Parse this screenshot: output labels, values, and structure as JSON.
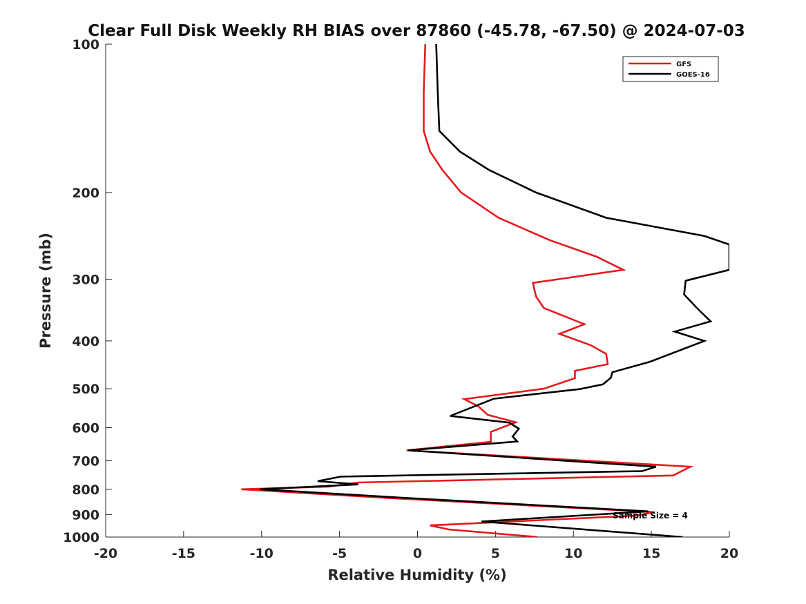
{
  "chart_data": {
    "type": "line",
    "title": "Clear Full Disk Weekly RH BIAS over 87860 (-45.78, -67.50) @ 2024-07-03",
    "xlabel": "Relative Humidity (%)",
    "ylabel": "Pressure (mb)",
    "xlim": [
      -20,
      20
    ],
    "ylim": [
      100,
      1000
    ],
    "yscale": "log",
    "y_reversed": true,
    "xticks": [
      -20,
      -15,
      -10,
      -5,
      0,
      5,
      10,
      15,
      20
    ],
    "yticks": [
      100,
      200,
      300,
      400,
      500,
      600,
      700,
      800,
      900,
      1000
    ],
    "grid": false,
    "legend_position": "top-right",
    "annotation": "Sample Size = 4",
    "series": [
      {
        "name": "GFS",
        "color": "#e41a1c",
        "points": [
          [
            0.5,
            100
          ],
          [
            0.4,
            125
          ],
          [
            0.4,
            150
          ],
          [
            0.8,
            165
          ],
          [
            1.6,
            180
          ],
          [
            2.8,
            200
          ],
          [
            5.2,
            225
          ],
          [
            8.5,
            250
          ],
          [
            11.5,
            270
          ],
          [
            13.2,
            287
          ],
          [
            7.4,
            305
          ],
          [
            7.6,
            325
          ],
          [
            8.1,
            343
          ],
          [
            10.7,
            370
          ],
          [
            9.1,
            387
          ],
          [
            11.1,
            408
          ],
          [
            12.1,
            425
          ],
          [
            12.2,
            446
          ],
          [
            10.1,
            460
          ],
          [
            10.1,
            476
          ],
          [
            8.1,
            500
          ],
          [
            3.0,
            525
          ],
          [
            3.9,
            543
          ],
          [
            4.5,
            565
          ],
          [
            6.3,
            585
          ],
          [
            4.7,
            612
          ],
          [
            4.7,
            641
          ],
          [
            -0.7,
            667
          ],
          [
            17.5,
            720
          ],
          [
            16.4,
            750
          ],
          [
            -3.8,
            775
          ],
          [
            -5.7,
            790
          ],
          [
            -11.3,
            800
          ],
          [
            -2.0,
            833
          ],
          [
            15.2,
            890
          ],
          [
            14.0,
            905
          ],
          [
            0.8,
            947
          ],
          [
            2.0,
            965
          ],
          [
            7.7,
            1000
          ]
        ]
      },
      {
        "name": "GOES-16",
        "color": "#000000",
        "points": [
          [
            1.2,
            100
          ],
          [
            1.3,
            125
          ],
          [
            1.4,
            150
          ],
          [
            2.7,
            165
          ],
          [
            4.6,
            180
          ],
          [
            7.6,
            200
          ],
          [
            12.1,
            225
          ],
          [
            18.4,
            245
          ],
          [
            20.0,
            255
          ],
          [
            20.0,
            287
          ],
          [
            17.2,
            302
          ],
          [
            17.1,
            322
          ],
          [
            18.0,
            345
          ],
          [
            18.8,
            365
          ],
          [
            16.5,
            383
          ],
          [
            18.4,
            400
          ],
          [
            17.0,
            416
          ],
          [
            14.9,
            441
          ],
          [
            12.5,
            463
          ],
          [
            12.4,
            475
          ],
          [
            11.9,
            490
          ],
          [
            10.4,
            501
          ],
          [
            4.9,
            524
          ],
          [
            2.1,
            568
          ],
          [
            5.9,
            586
          ],
          [
            6.5,
            603
          ],
          [
            6.1,
            625
          ],
          [
            6.4,
            640
          ],
          [
            -0.6,
            667
          ],
          [
            15.3,
            720
          ],
          [
            14.4,
            735
          ],
          [
            -4.9,
            754
          ],
          [
            -6.4,
            770
          ],
          [
            -3.8,
            782
          ],
          [
            -10.1,
            800
          ],
          [
            -1.0,
            832
          ],
          [
            14.8,
            887
          ],
          [
            4.1,
            930
          ],
          [
            17.0,
            1000
          ]
        ]
      }
    ]
  }
}
